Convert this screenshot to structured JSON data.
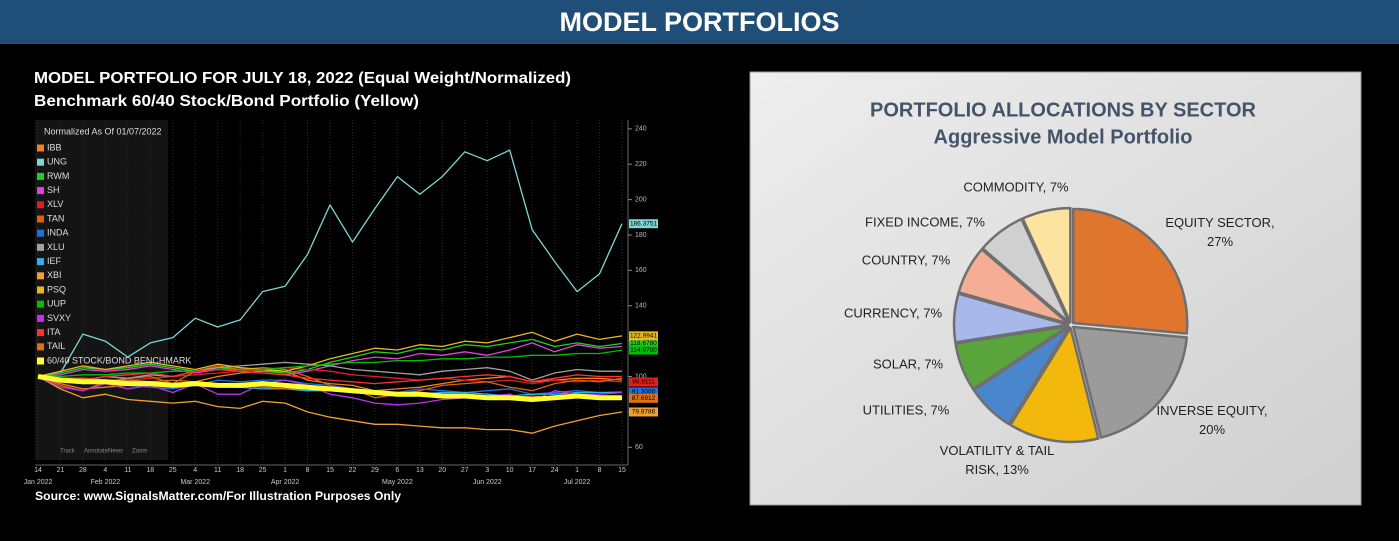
{
  "header": {
    "title": "MODEL PORTFOLIOS"
  },
  "chart_data": [
    {
      "type": "line",
      "title": "MODEL PORTFOLIO FOR JULY 18, 2022 (Equal Weight/Normalized)",
      "subtitle": "Benchmark 60/40 Stock/Bond Portfolio (Yellow)",
      "legend_title": "Normalized As Of 01/07/2022",
      "source": "Source: www.SignalsMatter.com/For Illustration Purposes Only",
      "toolbar": [
        "Track",
        "Annotate",
        "News",
        "Zoom"
      ],
      "categories": [
        "14",
        "21",
        "28",
        "4",
        "11",
        "18",
        "25",
        "4",
        "11",
        "18",
        "25",
        "1",
        "8",
        "15",
        "22",
        "29",
        "6",
        "13",
        "20",
        "27",
        "3",
        "10",
        "17",
        "24",
        "1",
        "8",
        "15"
      ],
      "months": [
        "Jan 2022",
        "Feb 2022",
        "Mar 2022",
        "Apr 2022",
        "May 2022",
        "Jun 2022",
        "Jul 2022"
      ],
      "ylim": [
        50,
        245
      ],
      "yticks": [
        60,
        80,
        100,
        120,
        140,
        160,
        180,
        200,
        220,
        240
      ],
      "grid": true,
      "legend": "upper left",
      "series": [
        {
          "name": "IBB",
          "color": "#f08020",
          "values": [
            100,
            96,
            93,
            94,
            95,
            96,
            94,
            97,
            100,
            102,
            103,
            103,
            98,
            96,
            95,
            92,
            93,
            94,
            96,
            98,
            99,
            100,
            97,
            98,
            99,
            99,
            98
          ]
        },
        {
          "name": "UNG",
          "color": "#7fd6d6",
          "end_label": "186.3751",
          "values": [
            100,
            102,
            124,
            120,
            111,
            119,
            122,
            133,
            128,
            132,
            148,
            151,
            169,
            197,
            176,
            195,
            213,
            203,
            213,
            227,
            222,
            228,
            183,
            165,
            148,
            158,
            186.3751
          ]
        },
        {
          "name": "RWM",
          "color": "#20d020",
          "end_label": "118.6780",
          "values": [
            100,
            102,
            105,
            104,
            105,
            107,
            105,
            103,
            105,
            104,
            103,
            102,
            104,
            108,
            111,
            114,
            113,
            116,
            115,
            118,
            117,
            119,
            121,
            117,
            119,
            117,
            118.678
          ]
        },
        {
          "name": "SH",
          "color": "#e040e0",
          "values": [
            100,
            101,
            104,
            103,
            104,
            106,
            104,
            102,
            104,
            103,
            102,
            101,
            103,
            106,
            109,
            111,
            110,
            113,
            112,
            114,
            112,
            115,
            119,
            114,
            118,
            116,
            117
          ]
        },
        {
          "name": "XLV",
          "color": "#e02020",
          "end_label": "96.9111",
          "values": [
            100,
            98,
            99,
            98,
            98,
            99,
            100,
            101,
            102,
            103,
            104,
            105,
            104,
            103,
            101,
            100,
            99,
            98,
            99,
            98,
            97,
            98,
            96,
            98,
            97,
            98,
            96.9111
          ]
        },
        {
          "name": "TAN",
          "color": "#e06010",
          "values": [
            100,
            95,
            92,
            97,
            99,
            100,
            96,
            103,
            106,
            104,
            105,
            104,
            100,
            95,
            93,
            88,
            90,
            92,
            95,
            96,
            97,
            94,
            92,
            96,
            98,
            97,
            99
          ]
        },
        {
          "name": "INDA",
          "color": "#2070e0",
          "end_label": "91.3000",
          "values": [
            100,
            98,
            96,
            97,
            95,
            94,
            93,
            95,
            98,
            97,
            98,
            98,
            96,
            95,
            93,
            92,
            91,
            93,
            92,
            91,
            92,
            93,
            90,
            91,
            92,
            91,
            91.3
          ]
        },
        {
          "name": "XLU",
          "color": "#a0a0a0",
          "values": [
            100,
            99,
            98,
            100,
            99,
            101,
            100,
            103,
            105,
            106,
            107,
            108,
            107,
            106,
            104,
            103,
            102,
            101,
            103,
            104,
            105,
            103,
            98,
            102,
            104,
            103,
            103
          ]
        },
        {
          "name": "IEF",
          "color": "#30b0f0",
          "values": [
            100,
            99,
            98,
            98,
            98,
            97,
            96,
            96,
            95,
            94,
            93,
            93,
            92,
            92,
            91,
            91,
            91,
            90,
            91,
            91,
            90,
            89,
            90,
            90,
            91,
            91,
            91
          ]
        },
        {
          "name": "XBI",
          "color": "#f0a030",
          "end_label": "79.9786",
          "values": [
            100,
            93,
            88,
            90,
            87,
            86,
            85,
            86,
            83,
            82,
            86,
            85,
            80,
            77,
            75,
            73,
            73,
            72,
            71,
            71,
            70,
            70,
            68,
            72,
            75,
            78,
            79.9786
          ]
        },
        {
          "name": "PSQ",
          "color": "#e8b820",
          "end_label": "122.9941",
          "values": [
            100,
            103,
            106,
            104,
            106,
            108,
            106,
            104,
            107,
            105,
            104,
            103,
            106,
            110,
            113,
            116,
            115,
            118,
            117,
            120,
            119,
            122,
            125,
            120,
            124,
            121,
            122.9941
          ]
        },
        {
          "name": "UUP",
          "color": "#00c000",
          "end_label": "114.9700",
          "values": [
            100,
            100,
            101,
            101,
            102,
            102,
            103,
            103,
            104,
            104,
            104,
            105,
            106,
            107,
            108,
            108,
            109,
            109,
            110,
            110,
            111,
            111,
            112,
            112,
            113,
            113,
            114.97
          ]
        },
        {
          "name": "SVXY",
          "color": "#c030f0",
          "values": [
            100,
            94,
            92,
            96,
            93,
            95,
            91,
            96,
            90,
            90,
            96,
            98,
            95,
            90,
            88,
            85,
            84,
            85,
            87,
            88,
            89,
            90,
            86,
            92,
            90,
            90,
            91
          ]
        },
        {
          "name": "ITA",
          "color": "#ff3030",
          "values": [
            100,
            99,
            98,
            100,
            101,
            102,
            100,
            103,
            104,
            103,
            102,
            101,
            99,
            98,
            97,
            96,
            97,
            98,
            99,
            100,
            101,
            100,
            97,
            99,
            101,
            100,
            100
          ]
        },
        {
          "name": "TAIL",
          "color": "#e07010",
          "end_label": "87.6912",
          "values": [
            100,
            99,
            99,
            98,
            98,
            97,
            98,
            97,
            96,
            95,
            94,
            93,
            93,
            92,
            92,
            91,
            90,
            91,
            90,
            89,
            89,
            88,
            89,
            88,
            88,
            88,
            87.6912
          ]
        },
        {
          "name": "60/40 STOCK/BOND BENCHMARK",
          "color": "#ffff30",
          "width": 5,
          "values": [
            100,
            98,
            97,
            97,
            96,
            96,
            95,
            96,
            95,
            95,
            96,
            95,
            94,
            93,
            92,
            91,
            90,
            90,
            89,
            89,
            88,
            88,
            87,
            88,
            89,
            88,
            88
          ]
        }
      ]
    },
    {
      "type": "pie",
      "title": "PORTFOLIO ALLOCATIONS BY SECTOR",
      "subtitle": "Aggressive Model Portfolio",
      "value_labels": [
        "EQUITY SECTOR, 27%",
        "INVERSE EQUITY, 20%",
        "VOLATILITY & TAIL RISK, 13%",
        "UTILITIES, 7%",
        "SOLAR, 7%",
        "CURRENCY, 7%",
        "COUNTRY, 7%",
        "FIXED INCOME, 7%",
        "COMMODITY, 7%"
      ],
      "values": [
        27,
        20,
        13,
        7,
        7,
        7,
        7,
        7,
        7
      ],
      "colors": [
        "#e0762e",
        "#9b9b9b",
        "#f2b80c",
        "#4a86cc",
        "#5aa43c",
        "#a9b8ea",
        "#f5ae95",
        "#d0d0d0",
        "#fde3a0"
      ]
    }
  ]
}
